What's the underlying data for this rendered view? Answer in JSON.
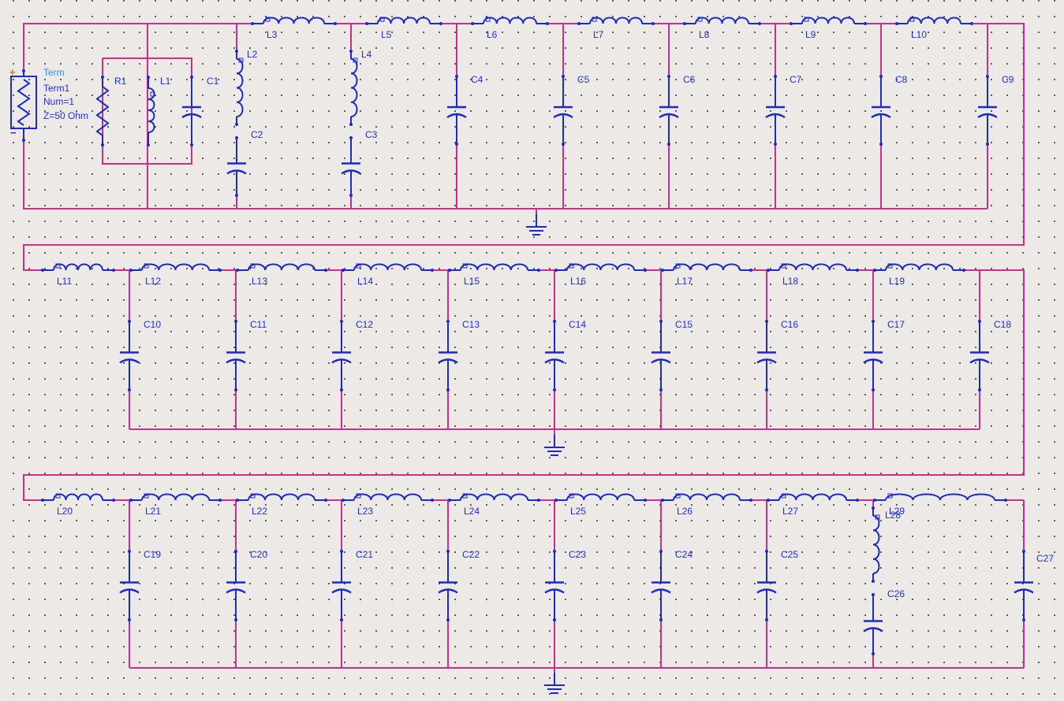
{
  "term": {
    "type": "Term",
    "name": "Term1",
    "num": "Num=1",
    "z": "Z=50 Ohm",
    "plus": "+",
    "minus": "−"
  },
  "colors": {
    "wire": "#cc2e88",
    "component": "#1a2bc8",
    "label": "#1f2fd6",
    "term_label": "#2f8fe0",
    "plus": "#e07010",
    "background": "#ece9e6"
  },
  "row1": {
    "resistor": "R1",
    "inductor_parallel": "L1",
    "capacitor_parallel": "C1",
    "series_lc": [
      {
        "inductor": "L2",
        "capacitor": "C2"
      },
      {
        "inductor": "L4",
        "capacitor": "C3"
      }
    ],
    "series_inductors": [
      "L3",
      "L5",
      "L6",
      "L7",
      "L8",
      "L9",
      "L10"
    ],
    "shunt_caps": [
      "C4",
      "C5",
      "C6",
      "C7",
      "C8",
      "C9"
    ]
  },
  "row2": {
    "series_inductors": [
      "L11",
      "L12",
      "L13",
      "L14",
      "L15",
      "L16",
      "L17",
      "L18",
      "L19"
    ],
    "shunt_caps": [
      "C10",
      "C11",
      "C12",
      "C13",
      "C14",
      "C15",
      "C16",
      "C17",
      "C18"
    ]
  },
  "row3": {
    "series_inductors": [
      "L20",
      "L21",
      "L22",
      "L23",
      "L24",
      "L25",
      "L26",
      "L27",
      "L29"
    ],
    "shunt_caps": [
      "C19",
      "C20",
      "C21",
      "C22",
      "C23",
      "C24",
      "C25",
      "C27"
    ],
    "series_lc": {
      "inductor": "L28",
      "capacitor": "C26"
    }
  }
}
